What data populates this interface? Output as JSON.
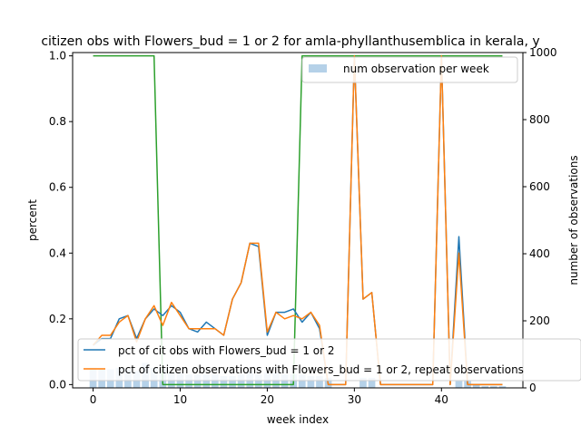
{
  "chart_data": {
    "type": "line",
    "title": "citizen obs with Flowers_bud = 1 or 2 for amla-phyllanthusemblica in kerala, y",
    "xlabel": "week index",
    "ylabel": "percent",
    "y2label": "number of observations",
    "xlim": [
      -2.35,
      49.35
    ],
    "ylim": [
      -0.01,
      1.01
    ],
    "y2lim": [
      0,
      1000
    ],
    "xticks": [
      0,
      10,
      20,
      30,
      40
    ],
    "yticks": [
      0.0,
      0.2,
      0.4,
      0.6,
      0.8,
      1.0
    ],
    "y2ticks": [
      0,
      200,
      400,
      600,
      800,
      1000
    ],
    "x": [
      0,
      1,
      2,
      3,
      4,
      5,
      6,
      7,
      8,
      9,
      10,
      11,
      12,
      13,
      14,
      15,
      16,
      17,
      18,
      19,
      20,
      21,
      22,
      23,
      24,
      25,
      26,
      27,
      28,
      29,
      30,
      31,
      32,
      33,
      34,
      35,
      36,
      37,
      38,
      39,
      40,
      41,
      42,
      43,
      44,
      45,
      46,
      47
    ],
    "series": [
      {
        "name": "pct of cit obs with Flowers_bud = 1 or 2",
        "color": "#1f77b4",
        "values": [
          0.12,
          0.14,
          0.14,
          0.2,
          0.21,
          0.14,
          0.2,
          0.23,
          0.21,
          0.24,
          0.22,
          0.17,
          0.16,
          0.19,
          0.17,
          0.15,
          0.26,
          0.31,
          0.43,
          0.42,
          0.15,
          0.22,
          0.22,
          0.23,
          0.19,
          0.22,
          0.17,
          0.0,
          0.0,
          0.0,
          1.0,
          0.26,
          0.28,
          0.0,
          0.0,
          0.0,
          0.0,
          0.0,
          0.0,
          0.0,
          1.0,
          0.0,
          0.45,
          0.0,
          0.0,
          0.0,
          0.0,
          0.0
        ]
      },
      {
        "name": "pct of citizen observations with Flowers_bud = 1 or 2, repeat observations",
        "color": "#ff7f0e",
        "values": [
          0.12,
          0.15,
          0.15,
          0.19,
          0.21,
          0.13,
          0.2,
          0.24,
          0.18,
          0.25,
          0.21,
          0.17,
          0.17,
          0.17,
          0.17,
          0.15,
          0.26,
          0.31,
          0.43,
          0.43,
          0.16,
          0.22,
          0.2,
          0.21,
          0.2,
          0.22,
          0.18,
          0.0,
          0.0,
          0.0,
          1.0,
          0.26,
          0.28,
          0.0,
          0.0,
          0.0,
          0.0,
          0.0,
          0.0,
          0.0,
          1.0,
          0.0,
          0.4,
          0.0,
          0.0,
          0.0,
          0.0,
          0.0
        ]
      },
      {
        "color": "#2ca02c",
        "values": [
          1,
          1,
          1,
          1,
          1,
          1,
          1,
          1,
          0,
          0,
          0,
          0,
          0,
          0,
          0,
          0,
          0,
          0,
          0,
          0,
          0,
          0,
          0,
          0,
          1,
          1,
          1,
          1,
          1,
          1,
          1,
          1,
          1,
          1,
          1,
          1,
          1,
          1,
          1,
          1,
          1,
          1,
          1,
          1,
          1,
          1,
          1,
          1
        ]
      },
      {
        "name": "num observation per week",
        "axis": "right",
        "kind": "bar",
        "color": "#b5d1e8",
        "values": [
          60,
          55,
          55,
          60,
          55,
          50,
          75,
          60,
          55,
          45,
          45,
          40,
          40,
          40,
          40,
          35,
          35,
          40,
          50,
          40,
          45,
          45,
          40,
          40,
          40,
          35,
          35,
          30,
          0,
          0,
          0,
          30,
          30,
          0,
          0,
          0,
          0,
          0,
          0,
          0,
          0,
          0,
          20,
          20,
          10,
          5,
          5,
          5
        ]
      }
    ],
    "legend_upper": {
      "placement": "top-right",
      "entries": [
        "num observation per week"
      ]
    },
    "legend_lower": {
      "placement": "lower-left",
      "entries": [
        "pct of cit obs with Flowers_bud = 1 or 2",
        "pct of citizen observations with Flowers_bud = 1 or 2, repeat observations"
      ]
    }
  }
}
